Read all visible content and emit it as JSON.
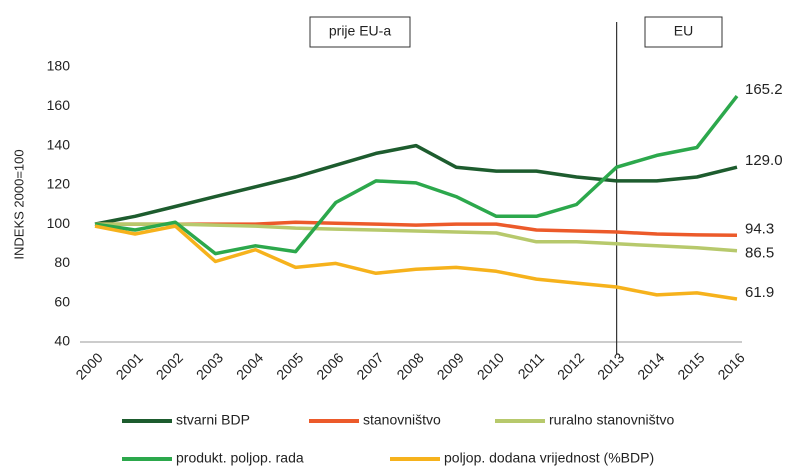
{
  "chart_data": {
    "type": "line",
    "y_label": "INDEKS 2000=100",
    "annotations": [
      "prije EU-a",
      "EU"
    ],
    "divider": "2013",
    "categories": [
      "2000",
      "2001",
      "2002",
      "2003",
      "2004",
      "2005",
      "2006",
      "2007",
      "2008",
      "2009",
      "2010",
      "2011",
      "2012",
      "2013",
      "2014",
      "2015",
      "2016"
    ],
    "ylim": [
      40,
      180
    ],
    "yticks": [
      40,
      60,
      80,
      100,
      120,
      140,
      160,
      180
    ],
    "series": [
      {
        "name": "stvarni BDP",
        "color": "#1d5c2e",
        "values": [
          100,
          104,
          109,
          114,
          119,
          124,
          130,
          136,
          140,
          129,
          127,
          127,
          124,
          122,
          122,
          124,
          129.0
        ],
        "value_labels": [
          null,
          null,
          null,
          null,
          null,
          null,
          null,
          null,
          null,
          null,
          null,
          null,
          null,
          null,
          null,
          null,
          "129.0"
        ]
      },
      {
        "name": "stanovništvo",
        "color": "#ec5a2a",
        "values": [
          100,
          100,
          100,
          100,
          100,
          101,
          100.5,
          100,
          99.5,
          100,
          100,
          97,
          96.5,
          96,
          95,
          94.5,
          94.3
        ],
        "value_labels": [
          null,
          null,
          null,
          null,
          null,
          null,
          null,
          null,
          null,
          null,
          null,
          null,
          null,
          null,
          null,
          null,
          "94.3"
        ]
      },
      {
        "name": "ruralno stanovništvo",
        "color": "#b7c96c",
        "values": [
          100,
          100,
          100,
          99.5,
          99,
          98,
          97.5,
          97,
          96.5,
          96,
          95.5,
          91,
          91,
          90,
          89,
          88,
          86.5
        ],
        "value_labels": [
          null,
          null,
          null,
          null,
          null,
          null,
          null,
          null,
          null,
          null,
          null,
          null,
          null,
          null,
          null,
          null,
          "86.5"
        ]
      },
      {
        "name": "produkt. poljop. rada",
        "color": "#2ca84c",
        "values": [
          100,
          97,
          101,
          85,
          89,
          86,
          111,
          122,
          121,
          114,
          104,
          104,
          110,
          129,
          135,
          139,
          165.2
        ],
        "value_labels": [
          null,
          null,
          null,
          null,
          null,
          null,
          null,
          null,
          null,
          null,
          null,
          null,
          null,
          null,
          null,
          null,
          "165.2"
        ]
      },
      {
        "name": "poljop. dodana vrijednost (%BDP)",
        "color": "#f6b21c",
        "values": [
          99,
          95,
          99,
          81,
          87,
          78,
          80,
          75,
          77,
          78,
          76,
          72,
          70,
          68,
          64,
          65,
          61.9
        ],
        "value_labels": [
          null,
          null,
          null,
          null,
          null,
          null,
          null,
          null,
          null,
          null,
          null,
          null,
          null,
          null,
          null,
          null,
          "61.9"
        ]
      }
    ]
  }
}
